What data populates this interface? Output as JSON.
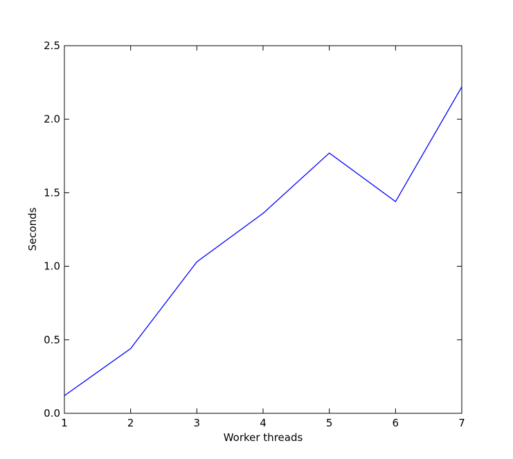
{
  "chart_data": {
    "type": "line",
    "title": "",
    "xlabel": "Worker threads",
    "ylabel": "Seconds",
    "xlim": [
      1,
      7
    ],
    "ylim": [
      0.0,
      2.5
    ],
    "xticks": [
      "1",
      "2",
      "3",
      "4",
      "5",
      "6",
      "7"
    ],
    "yticks": [
      "0.0",
      "0.5",
      "1.0",
      "1.5",
      "2.0",
      "2.5"
    ],
    "grid": false,
    "legend": "none",
    "series": [
      {
        "color": "#0000ff",
        "x": [
          1,
          2,
          3,
          4,
          5,
          6,
          7
        ],
        "values": [
          0.12,
          0.44,
          1.03,
          1.36,
          1.77,
          1.44,
          2.22
        ]
      }
    ]
  }
}
